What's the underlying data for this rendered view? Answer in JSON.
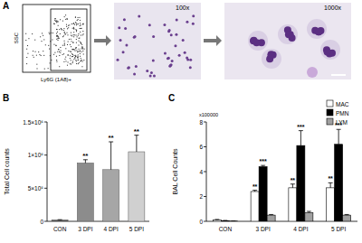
{
  "chart_data": [
    {
      "type": "image",
      "title": "A",
      "x_label": "Ly6G (1A8)+",
      "y_label": "SSC",
      "annotations": [
        "100x",
        "1000x"
      ]
    },
    {
      "type": "bar",
      "title": "B",
      "y_label": "Total Cell counts",
      "categories": [
        "CON",
        "3 DPI",
        "4 DPI",
        "5 DPI"
      ],
      "values": [
        20000,
        880000,
        780000,
        1050000
      ],
      "errors": [
        5000,
        50000,
        420000,
        250000
      ],
      "colors": [
        "#555555",
        "#8c8c8c",
        "#a6a6a6",
        "#d0d0d0"
      ],
      "annotations": [
        null,
        "**",
        "**",
        "**"
      ],
      "ylim": [
        0,
        1500000
      ],
      "yticks": [
        {
          "value": 0,
          "label": "0"
        },
        {
          "value": 500000,
          "label": "5×10⁵"
        },
        {
          "value": 1000000,
          "label": "1×10⁶"
        },
        {
          "value": 1500000,
          "label": "1.5×10⁶"
        }
      ],
      "grid": false
    },
    {
      "type": "bar",
      "title": "C",
      "y_label": "BAL Cell Counts",
      "annotations": [
        "x100000"
      ],
      "categories": [
        "CON",
        "3 DPI",
        "4 DPI",
        "5 DPI"
      ],
      "series": [
        {
          "name": "MAC",
          "color": "#ffffff",
          "values": [
            0.1,
            2.4,
            2.7,
            2.7
          ],
          "errors": [
            0.05,
            0.1,
            0.3,
            0.4
          ],
          "annotations": [
            null,
            "**",
            "**",
            "**"
          ]
        },
        {
          "name": "PMN",
          "color": "#000000",
          "values": [
            0.05,
            4.4,
            6.1,
            6.2
          ],
          "errors": [
            0.02,
            0.1,
            1.2,
            1.2
          ],
          "annotations": [
            null,
            "***",
            "***",
            "***"
          ]
        },
        {
          "name": "LYM",
          "color": "#a0a0a0",
          "values": [
            0.02,
            0.5,
            0.7,
            0.5
          ],
          "errors": [
            0.01,
            0.05,
            0.1,
            0.05
          ]
        }
      ],
      "ylim": [
        0,
        8
      ],
      "yticks": [
        0,
        2,
        4,
        6,
        8
      ],
      "grid": false,
      "legend": "top-right"
    }
  ]
}
